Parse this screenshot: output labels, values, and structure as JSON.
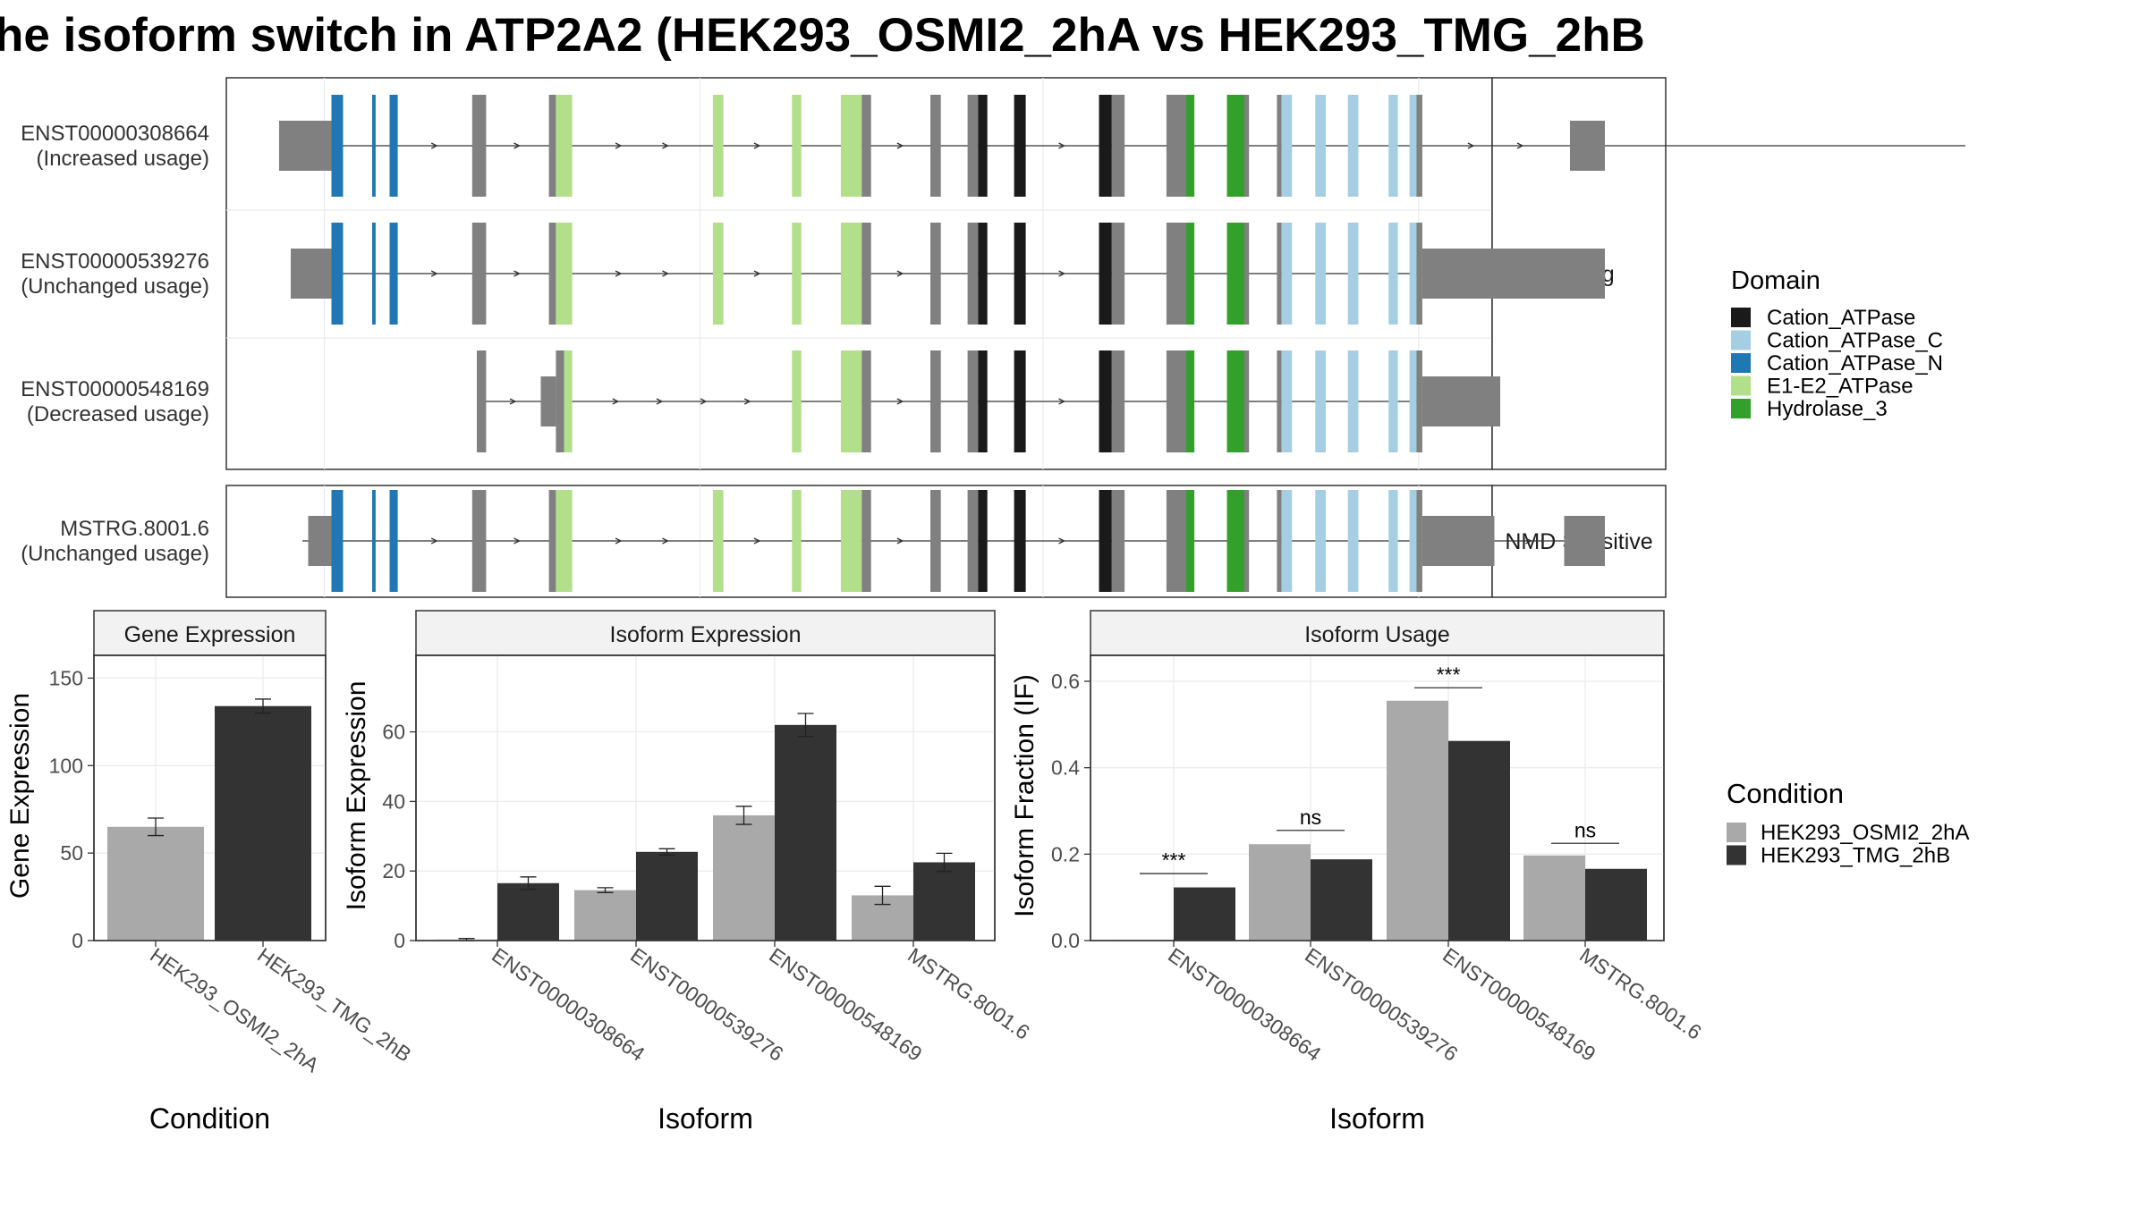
{
  "figure": {
    "title": "he isoform switch in ATP2A2 (HEK293_OSMI2_2hA vs HEK293_TMG_2hB",
    "colors": {
      "utr": "#808080",
      "intron": "#333333",
      "condition_a": "#a9a9a9",
      "condition_b": "#333333",
      "panel_border": "#333333",
      "strip_fill": "#f2f2f2",
      "grid": "#ebebeb"
    }
  },
  "domain_legend": {
    "title": "Domain",
    "items": [
      {
        "label": "Cation_ATPase",
        "color": "#1a1a1a"
      },
      {
        "label": "Cation_ATPase_C",
        "color": "#a6cee3"
      },
      {
        "label": "Cation_ATPase_N",
        "color": "#1f78b4"
      },
      {
        "label": "E1-E2_ATPase",
        "color": "#b2df8a"
      },
      {
        "label": "Hydrolase_3",
        "color": "#33a02c"
      }
    ]
  },
  "condition_legend": {
    "title": "Condition",
    "items": [
      {
        "label": "HEK293_OSMI2_2hA",
        "color": "#a9a9a9"
      },
      {
        "label": "HEK293_TMG_2hB",
        "color": "#333333"
      }
    ]
  },
  "isoform_structure": {
    "groups": [
      {
        "label": "Coding",
        "transcripts": [
          {
            "id": "ENST00000308664",
            "usage": "(Increased usage)",
            "span": [
              0.04,
              1.45
            ],
            "exons": [
              {
                "s": 0.0,
                "e": 0.045,
                "k": "utr"
              },
              {
                "s": 0.045,
                "e": 0.055,
                "k": "Cation_ATPase_N"
              },
              {
                "s": 0.08,
                "e": 0.083,
                "k": "Cation_ATPase_N"
              },
              {
                "s": 0.095,
                "e": 0.102,
                "k": "Cation_ATPase_N"
              },
              {
                "s": 0.166,
                "e": 0.178,
                "k": "cds"
              },
              {
                "s": 0.232,
                "e": 0.238,
                "k": "cds"
              },
              {
                "s": 0.238,
                "e": 0.252,
                "k": "E1-E2_ATPase"
              },
              {
                "s": 0.373,
                "e": 0.382,
                "k": "E1-E2_ATPase"
              },
              {
                "s": 0.441,
                "e": 0.449,
                "k": "E1-E2_ATPase"
              },
              {
                "s": 0.483,
                "e": 0.501,
                "k": "E1-E2_ATPase"
              },
              {
                "s": 0.501,
                "e": 0.509,
                "k": "cds"
              },
              {
                "s": 0.56,
                "e": 0.569,
                "k": "cds"
              },
              {
                "s": 0.592,
                "e": 0.601,
                "k": "cds"
              },
              {
                "s": 0.601,
                "e": 0.609,
                "k": "Cation_ATPase"
              },
              {
                "s": 0.632,
                "e": 0.642,
                "k": "Cation_ATPase"
              },
              {
                "s": 0.705,
                "e": 0.716,
                "k": "Cation_ATPase"
              },
              {
                "s": 0.716,
                "e": 0.727,
                "k": "cds"
              },
              {
                "s": 0.763,
                "e": 0.78,
                "k": "cds"
              },
              {
                "s": 0.78,
                "e": 0.787,
                "k": "Hydrolase_3"
              },
              {
                "s": 0.815,
                "e": 0.83,
                "k": "Hydrolase_3"
              },
              {
                "s": 0.83,
                "e": 0.834,
                "k": "cds"
              },
              {
                "s": 0.858,
                "e": 0.862,
                "k": "cds"
              },
              {
                "s": 0.862,
                "e": 0.871,
                "k": "Cation_ATPase_C"
              },
              {
                "s": 0.891,
                "e": 0.9,
                "k": "Cation_ATPase_C"
              },
              {
                "s": 0.919,
                "e": 0.928,
                "k": "Cation_ATPase_C"
              },
              {
                "s": 0.954,
                "e": 0.962,
                "k": "Cation_ATPase_C"
              },
              {
                "s": 0.972,
                "e": 0.978,
                "k": "Cation_ATPase_C"
              },
              {
                "s": 0.978,
                "e": 0.983,
                "k": "cds"
              },
              {
                "s": 1.11,
                "e": 1.14,
                "k": "utr"
              }
            ]
          },
          {
            "id": "ENST00000539276",
            "usage": "(Unchanged usage)",
            "span": [
              0.01,
              1.14
            ],
            "exons": [
              {
                "s": 0.01,
                "e": 0.045,
                "k": "utr"
              },
              {
                "s": 0.045,
                "e": 0.055,
                "k": "Cation_ATPase_N"
              },
              {
                "s": 0.08,
                "e": 0.083,
                "k": "Cation_ATPase_N"
              },
              {
                "s": 0.095,
                "e": 0.102,
                "k": "Cation_ATPase_N"
              },
              {
                "s": 0.166,
                "e": 0.178,
                "k": "cds"
              },
              {
                "s": 0.232,
                "e": 0.238,
                "k": "cds"
              },
              {
                "s": 0.238,
                "e": 0.252,
                "k": "E1-E2_ATPase"
              },
              {
                "s": 0.373,
                "e": 0.382,
                "k": "E1-E2_ATPase"
              },
              {
                "s": 0.441,
                "e": 0.449,
                "k": "E1-E2_ATPase"
              },
              {
                "s": 0.483,
                "e": 0.501,
                "k": "E1-E2_ATPase"
              },
              {
                "s": 0.501,
                "e": 0.509,
                "k": "cds"
              },
              {
                "s": 0.56,
                "e": 0.569,
                "k": "cds"
              },
              {
                "s": 0.592,
                "e": 0.601,
                "k": "cds"
              },
              {
                "s": 0.601,
                "e": 0.609,
                "k": "Cation_ATPase"
              },
              {
                "s": 0.632,
                "e": 0.642,
                "k": "Cation_ATPase"
              },
              {
                "s": 0.705,
                "e": 0.716,
                "k": "Cation_ATPase"
              },
              {
                "s": 0.716,
                "e": 0.727,
                "k": "cds"
              },
              {
                "s": 0.763,
                "e": 0.78,
                "k": "cds"
              },
              {
                "s": 0.78,
                "e": 0.787,
                "k": "Hydrolase_3"
              },
              {
                "s": 0.815,
                "e": 0.83,
                "k": "Hydrolase_3"
              },
              {
                "s": 0.83,
                "e": 0.834,
                "k": "cds"
              },
              {
                "s": 0.858,
                "e": 0.862,
                "k": "cds"
              },
              {
                "s": 0.862,
                "e": 0.871,
                "k": "Cation_ATPase_C"
              },
              {
                "s": 0.891,
                "e": 0.9,
                "k": "Cation_ATPase_C"
              },
              {
                "s": 0.919,
                "e": 0.928,
                "k": "Cation_ATPase_C"
              },
              {
                "s": 0.954,
                "e": 0.962,
                "k": "Cation_ATPase_C"
              },
              {
                "s": 0.972,
                "e": 0.978,
                "k": "Cation_ATPase_C"
              },
              {
                "s": 0.978,
                "e": 0.983,
                "k": "cds"
              },
              {
                "s": 0.983,
                "e": 1.14,
                "k": "utr"
              }
            ]
          },
          {
            "id": "ENST00000548169",
            "usage": "(Decreased usage)",
            "span": [
              0.18,
              1.05
            ],
            "exons": [
              {
                "s": 0.17,
                "e": 0.178,
                "k": "cds"
              },
              {
                "s": 0.225,
                "e": 0.238,
                "k": "utr"
              },
              {
                "s": 0.238,
                "e": 0.245,
                "k": "cds"
              },
              {
                "s": 0.245,
                "e": 0.252,
                "k": "E1-E2_ATPase"
              },
              {
                "s": 0.441,
                "e": 0.449,
                "k": "E1-E2_ATPase"
              },
              {
                "s": 0.483,
                "e": 0.501,
                "k": "E1-E2_ATPase"
              },
              {
                "s": 0.501,
                "e": 0.509,
                "k": "cds"
              },
              {
                "s": 0.56,
                "e": 0.569,
                "k": "cds"
              },
              {
                "s": 0.592,
                "e": 0.601,
                "k": "cds"
              },
              {
                "s": 0.601,
                "e": 0.609,
                "k": "Cation_ATPase"
              },
              {
                "s": 0.632,
                "e": 0.642,
                "k": "Cation_ATPase"
              },
              {
                "s": 0.705,
                "e": 0.716,
                "k": "Cation_ATPase"
              },
              {
                "s": 0.716,
                "e": 0.727,
                "k": "cds"
              },
              {
                "s": 0.763,
                "e": 0.78,
                "k": "cds"
              },
              {
                "s": 0.78,
                "e": 0.787,
                "k": "Hydrolase_3"
              },
              {
                "s": 0.815,
                "e": 0.83,
                "k": "Hydrolase_3"
              },
              {
                "s": 0.83,
                "e": 0.834,
                "k": "cds"
              },
              {
                "s": 0.858,
                "e": 0.862,
                "k": "cds"
              },
              {
                "s": 0.862,
                "e": 0.871,
                "k": "Cation_ATPase_C"
              },
              {
                "s": 0.891,
                "e": 0.9,
                "k": "Cation_ATPase_C"
              },
              {
                "s": 0.919,
                "e": 0.928,
                "k": "Cation_ATPase_C"
              },
              {
                "s": 0.954,
                "e": 0.962,
                "k": "Cation_ATPase_C"
              },
              {
                "s": 0.972,
                "e": 0.978,
                "k": "Cation_ATPase_C"
              },
              {
                "s": 0.978,
                "e": 0.983,
                "k": "cds"
              },
              {
                "s": 0.983,
                "e": 1.05,
                "k": "utr"
              }
            ]
          }
        ]
      },
      {
        "label": "NMD Sensitive",
        "transcripts": [
          {
            "id": "MSTRG.8001.6",
            "usage": "(Unchanged usage)",
            "span": [
              0.02,
              1.14
            ],
            "exons": [
              {
                "s": 0.025,
                "e": 0.045,
                "k": "utr"
              },
              {
                "s": 0.045,
                "e": 0.055,
                "k": "Cation_ATPase_N"
              },
              {
                "s": 0.08,
                "e": 0.083,
                "k": "Cation_ATPase_N"
              },
              {
                "s": 0.095,
                "e": 0.102,
                "k": "Cation_ATPase_N"
              },
              {
                "s": 0.166,
                "e": 0.178,
                "k": "cds"
              },
              {
                "s": 0.232,
                "e": 0.238,
                "k": "cds"
              },
              {
                "s": 0.238,
                "e": 0.252,
                "k": "E1-E2_ATPase"
              },
              {
                "s": 0.373,
                "e": 0.382,
                "k": "E1-E2_ATPase"
              },
              {
                "s": 0.441,
                "e": 0.449,
                "k": "E1-E2_ATPase"
              },
              {
                "s": 0.483,
                "e": 0.501,
                "k": "E1-E2_ATPase"
              },
              {
                "s": 0.501,
                "e": 0.509,
                "k": "cds"
              },
              {
                "s": 0.56,
                "e": 0.569,
                "k": "cds"
              },
              {
                "s": 0.592,
                "e": 0.601,
                "k": "cds"
              },
              {
                "s": 0.601,
                "e": 0.609,
                "k": "Cation_ATPase"
              },
              {
                "s": 0.632,
                "e": 0.642,
                "k": "Cation_ATPase"
              },
              {
                "s": 0.705,
                "e": 0.716,
                "k": "Cation_ATPase"
              },
              {
                "s": 0.716,
                "e": 0.727,
                "k": "cds"
              },
              {
                "s": 0.763,
                "e": 0.78,
                "k": "cds"
              },
              {
                "s": 0.78,
                "e": 0.787,
                "k": "Hydrolase_3"
              },
              {
                "s": 0.815,
                "e": 0.83,
                "k": "Hydrolase_3"
              },
              {
                "s": 0.83,
                "e": 0.834,
                "k": "cds"
              },
              {
                "s": 0.858,
                "e": 0.862,
                "k": "cds"
              },
              {
                "s": 0.862,
                "e": 0.871,
                "k": "Cation_ATPase_C"
              },
              {
                "s": 0.891,
                "e": 0.9,
                "k": "Cation_ATPase_C"
              },
              {
                "s": 0.919,
                "e": 0.928,
                "k": "Cation_ATPase_C"
              },
              {
                "s": 0.954,
                "e": 0.962,
                "k": "Cation_ATPase_C"
              },
              {
                "s": 0.972,
                "e": 0.978,
                "k": "Cation_ATPase_C"
              },
              {
                "s": 0.978,
                "e": 0.983,
                "k": "cds"
              },
              {
                "s": 0.983,
                "e": 1.045,
                "k": "utr"
              },
              {
                "s": 1.105,
                "e": 1.14,
                "k": "utr"
              }
            ]
          }
        ]
      }
    ]
  },
  "chart_data": [
    {
      "type": "bar",
      "title": "Gene Expression",
      "xlabel": "Condition",
      "ylabel": "Gene Expression",
      "categories": [
        "HEK293_OSMI2_2hA",
        "HEK293_TMG_2hB"
      ],
      "values": [
        65,
        134
      ],
      "error": [
        5,
        4
      ],
      "ylim": [
        0,
        163
      ],
      "yticks": [
        0,
        50,
        100,
        150
      ],
      "grid": true
    },
    {
      "type": "bar",
      "title": "Isoform Expression",
      "xlabel": "Isoform",
      "ylabel": "Isoform Expression",
      "categories": [
        "ENST00000308664",
        "ENST00000539276",
        "ENST00000548169",
        "MSTRG.8001.6"
      ],
      "series": [
        {
          "name": "HEK293_OSMI2_2hA",
          "values": [
            0.3,
            14.5,
            36,
            13
          ],
          "error": [
            0.3,
            0.7,
            2.6,
            2.6
          ]
        },
        {
          "name": "HEK293_TMG_2hB",
          "values": [
            16.5,
            25.5,
            62,
            22.5
          ],
          "error": [
            1.8,
            0.9,
            3.3,
            2.6
          ]
        }
      ],
      "ylim": [
        0,
        82
      ],
      "yticks": [
        0,
        20,
        40,
        60
      ],
      "grid": true
    },
    {
      "type": "bar",
      "title": "Isoform Usage",
      "xlabel": "Isoform",
      "ylabel": "Isoform Fraction (IF)",
      "categories": [
        "ENST00000308664",
        "ENST00000539276",
        "ENST00000548169",
        "MSTRG.8001.6"
      ],
      "series": [
        {
          "name": "HEK293_OSMI2_2hA",
          "values": [
            0.002,
            0.223,
            0.555,
            0.197
          ]
        },
        {
          "name": "HEK293_TMG_2hB",
          "values": [
            0.123,
            0.188,
            0.462,
            0.166
          ]
        }
      ],
      "significance": [
        "***",
        "ns",
        "***",
        "ns"
      ],
      "significance_level": [
        0.155,
        0.255,
        0.585,
        0.225
      ],
      "ylim": [
        0,
        0.66
      ],
      "yticks": [
        "0.0",
        "0.2",
        "0.4",
        "0.6"
      ],
      "grid": true
    }
  ]
}
